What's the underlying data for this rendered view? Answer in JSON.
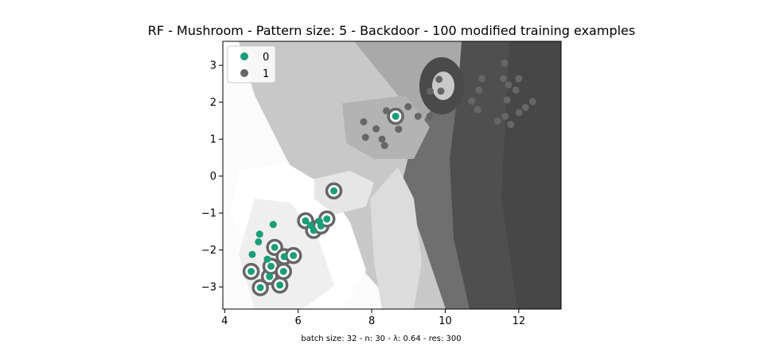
{
  "chart_data": {
    "type": "scatter",
    "title": "RF - Mushroom - Pattern size: 5 - Backdoor - 100 modified training examples",
    "caption": "batch size: 32 - n: 30 - λ: 0.64 - res: 300",
    "xlabel": "",
    "ylabel": "",
    "xlim": [
      3.95,
      13.15
    ],
    "ylim": [
      -3.6,
      3.65
    ],
    "x_ticks": [
      4,
      6,
      8,
      10,
      12
    ],
    "y_ticks": [
      -3,
      -2,
      -1,
      0,
      1,
      2,
      3
    ],
    "legend": {
      "placement": "top-left",
      "entries": [
        "0",
        "1"
      ]
    },
    "colors": {
      "class0": "#1b9e77",
      "class1": "#666666",
      "ring": "#666666"
    },
    "series": [
      {
        "name": "0",
        "color": "#1b9e77",
        "points": [
          [
            4.72,
            -2.58
          ],
          [
            4.97,
            -3.02
          ],
          [
            5.22,
            -2.72
          ],
          [
            5.26,
            -2.44
          ],
          [
            5.16,
            -2.25
          ],
          [
            5.5,
            -2.95
          ],
          [
            5.36,
            -1.93
          ],
          [
            5.6,
            -2.58
          ],
          [
            5.62,
            -2.18
          ],
          [
            5.87,
            -2.15
          ],
          [
            6.2,
            -1.21
          ],
          [
            6.33,
            -1.33
          ],
          [
            6.42,
            -1.47
          ],
          [
            6.62,
            -1.35
          ],
          [
            6.58,
            -1.23
          ],
          [
            6.78,
            -1.16
          ],
          [
            6.97,
            -0.4
          ],
          [
            8.65,
            1.62
          ],
          [
            4.75,
            -2.12
          ],
          [
            4.92,
            -1.78
          ],
          [
            4.95,
            -1.57
          ],
          [
            5.32,
            -1.31
          ]
        ],
        "ringed": [
          [
            4.72,
            -2.58
          ],
          [
            4.97,
            -3.02
          ],
          [
            5.22,
            -2.72
          ],
          [
            5.26,
            -2.44
          ],
          [
            5.5,
            -2.95
          ],
          [
            5.36,
            -1.93
          ],
          [
            5.6,
            -2.58
          ],
          [
            5.62,
            -2.18
          ],
          [
            5.87,
            -2.15
          ],
          [
            6.2,
            -1.21
          ],
          [
            6.42,
            -1.47
          ],
          [
            6.62,
            -1.35
          ],
          [
            6.78,
            -1.16
          ],
          [
            6.97,
            -0.4
          ],
          [
            8.65,
            1.62
          ]
        ]
      },
      {
        "name": "1",
        "color": "#666666",
        "points": [
          [
            7.78,
            1.47
          ],
          [
            7.83,
            1.05
          ],
          [
            8.12,
            1.28
          ],
          [
            8.28,
            1.0
          ],
          [
            8.35,
            0.83
          ],
          [
            8.4,
            1.77
          ],
          [
            8.73,
            1.27
          ],
          [
            8.99,
            1.88
          ],
          [
            9.26,
            1.62
          ],
          [
            9.58,
            1.62
          ],
          [
            9.59,
            2.3
          ],
          [
            9.83,
            2.62
          ],
          [
            9.88,
            2.3
          ],
          [
            10.72,
            2.03
          ],
          [
            10.88,
            1.8
          ],
          [
            10.92,
            2.33
          ],
          [
            11.0,
            2.64
          ],
          [
            11.42,
            1.49
          ],
          [
            11.58,
            2.64
          ],
          [
            11.61,
            3.06
          ],
          [
            11.63,
            1.62
          ],
          [
            11.68,
            2.06
          ],
          [
            11.72,
            2.47
          ],
          [
            11.78,
            1.4
          ],
          [
            11.92,
            2.33
          ],
          [
            12.0,
            2.64
          ],
          [
            12.01,
            1.72
          ],
          [
            12.18,
            1.86
          ],
          [
            12.38,
            2.02
          ]
        ]
      }
    ]
  }
}
